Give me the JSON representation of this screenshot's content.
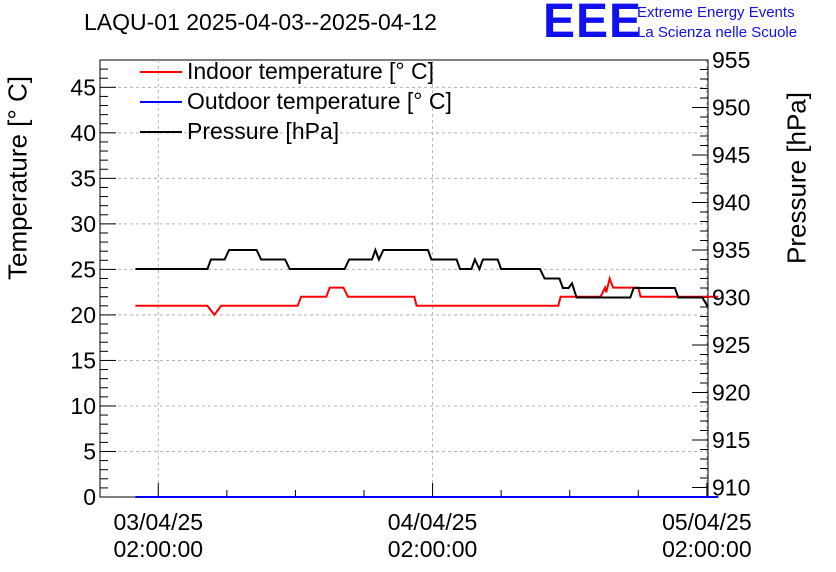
{
  "title": "LAQU-01 2025-04-03--2025-04-12",
  "logo": {
    "mark": "EEE",
    "line1": "Extreme Energy Events",
    "line2": "La Scienza nelle Scuole",
    "color": "#1010ee"
  },
  "legend": [
    {
      "label": "Indoor temperature [° C]",
      "color": "#ff0000"
    },
    {
      "label": "Outdoor temperature [° C]",
      "color": "#0000ff"
    },
    {
      "label": "Pressure [hPa]",
      "color": "#000000"
    }
  ],
  "chart_data": {
    "type": "line",
    "title": "LAQU-01 2025-04-03--2025-04-12",
    "ylabel": "Temperature [° C]",
    "y2label": "Pressure [hPa]",
    "ylim": [
      0,
      48
    ],
    "y2lim": [
      909,
      955
    ],
    "x_unit": "hours since 03/04/25 00:00:00",
    "xlim": [
      -3.1,
      50.1
    ],
    "yticks": [
      0,
      5,
      10,
      15,
      20,
      25,
      30,
      35,
      40,
      45
    ],
    "y2ticks": [
      910,
      915,
      920,
      925,
      930,
      935,
      940,
      945,
      950,
      955
    ],
    "xticks": [
      {
        "x": 2,
        "line1": "03/04/25",
        "line2": "02:00:00"
      },
      {
        "x": 26,
        "line1": "04/04/25",
        "line2": "02:00:00"
      },
      {
        "x": 50,
        "line1": "05/04/25",
        "line2": "02:00:00"
      }
    ],
    "grid": true,
    "legend_position": "top-left",
    "series": [
      {
        "name": "Indoor temperature [° C]",
        "axis": "left",
        "color": "#ff0000",
        "points": [
          [
            0,
            21
          ],
          [
            6.3,
            21
          ],
          [
            6.6,
            20.5
          ],
          [
            6.9,
            20
          ],
          [
            7.2,
            20.5
          ],
          [
            7.5,
            21
          ],
          [
            14.2,
            21
          ],
          [
            14.5,
            22
          ],
          [
            16.7,
            22
          ],
          [
            17,
            23
          ],
          [
            18.2,
            23
          ],
          [
            18.6,
            22
          ],
          [
            24.4,
            22
          ],
          [
            24.6,
            21
          ],
          [
            37,
            21
          ],
          [
            37.2,
            22
          ],
          [
            40.7,
            22
          ],
          [
            41.1,
            23
          ],
          [
            41.2,
            22.5
          ],
          [
            41.5,
            24
          ],
          [
            41.8,
            23
          ],
          [
            44,
            23
          ],
          [
            44.2,
            22
          ],
          [
            51,
            22
          ]
        ],
        "note": "readings estimated from chart"
      },
      {
        "name": "Outdoor temperature [° C]",
        "axis": "left",
        "color": "#0000ff",
        "points": [
          [
            0,
            0
          ],
          [
            51,
            0
          ]
        ]
      },
      {
        "name": "Pressure [hPa]",
        "axis": "right",
        "color": "#000000",
        "points": [
          [
            0,
            933
          ],
          [
            6.3,
            933
          ],
          [
            6.6,
            934
          ],
          [
            7.8,
            934
          ],
          [
            8.2,
            935
          ],
          [
            10.6,
            935
          ],
          [
            11,
            934
          ],
          [
            13.1,
            934
          ],
          [
            13.5,
            933
          ],
          [
            18.3,
            933
          ],
          [
            18.7,
            934
          ],
          [
            20.7,
            934
          ],
          [
            21,
            935
          ],
          [
            21.3,
            934
          ],
          [
            21.7,
            935
          ],
          [
            25.6,
            935
          ],
          [
            25.9,
            934
          ],
          [
            28.1,
            934
          ],
          [
            28.4,
            933
          ],
          [
            29.4,
            933
          ],
          [
            29.7,
            934
          ],
          [
            30.1,
            933
          ],
          [
            30.4,
            934
          ],
          [
            31.7,
            934
          ],
          [
            32,
            933
          ],
          [
            35.4,
            933
          ],
          [
            35.8,
            932
          ],
          [
            37.1,
            932
          ],
          [
            37.4,
            931
          ],
          [
            37.9,
            931
          ],
          [
            38.2,
            931.5
          ],
          [
            38.6,
            930
          ],
          [
            43.3,
            930
          ],
          [
            43.6,
            931
          ],
          [
            47.2,
            931
          ],
          [
            47.5,
            930
          ],
          [
            49.6,
            930
          ],
          [
            50.1,
            929
          ]
        ],
        "note": "readings estimated from chart"
      }
    ]
  }
}
